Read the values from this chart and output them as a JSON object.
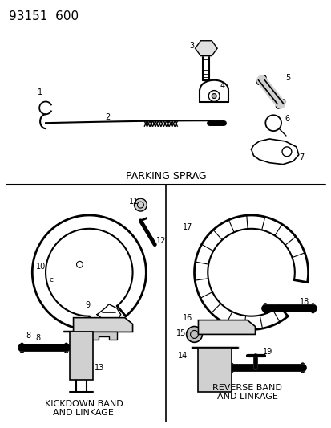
{
  "title": "93151  600",
  "bg": "#ffffff",
  "lc": "#000000",
  "tc": "#000000",
  "parking_sprag_label": "PARKING SPRAG",
  "kickdown_label": "KICKDOWN BAND\nAND LINKAGE",
  "reverse_label": "REVERSE BAND\nAND LINKAGE",
  "fig_w": 4.14,
  "fig_h": 5.33,
  "dpi": 100
}
